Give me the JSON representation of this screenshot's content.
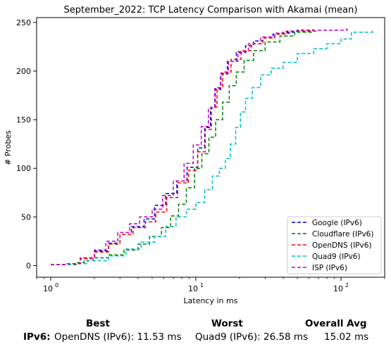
{
  "chart_data": {
    "type": "line",
    "title": "September_2022: TCP Latency Comparison with Akamai (mean)",
    "xlabel": "Latency in ms",
    "ylabel": "# Probes",
    "xscale": "log",
    "xlim": [
      0.8,
      200
    ],
    "ylim": [
      -12,
      255
    ],
    "xticks": [
      {
        "value": 1,
        "base": "10",
        "exp": "0"
      },
      {
        "value": 10,
        "base": "10",
        "exp": "1"
      },
      {
        "value": 100,
        "base": "10",
        "exp": "2"
      }
    ],
    "yticks": [
      0,
      50,
      100,
      150,
      200,
      250
    ],
    "legend_position": "lower-right",
    "series": [
      {
        "name": "Google (IPv6)",
        "color": "#0000cc",
        "points": [
          [
            1.0,
            1
          ],
          [
            1.3,
            2
          ],
          [
            1.6,
            7
          ],
          [
            2.0,
            15
          ],
          [
            2.5,
            23
          ],
          [
            3.0,
            32
          ],
          [
            3.6,
            40
          ],
          [
            4.4,
            48
          ],
          [
            5.2,
            62
          ],
          [
            6.2,
            74
          ],
          [
            7.4,
            87
          ],
          [
            8.7,
            101
          ],
          [
            10.3,
            121
          ],
          [
            11.5,
            142
          ],
          [
            12.6,
            162
          ],
          [
            13.6,
            181
          ],
          [
            14.8,
            197
          ],
          [
            16.5,
            210
          ],
          [
            19.0,
            219
          ],
          [
            22.0,
            226
          ],
          [
            25.0,
            231
          ],
          [
            29.0,
            235
          ],
          [
            34.0,
            238
          ],
          [
            40.0,
            240
          ],
          [
            50.0,
            242
          ],
          [
            65.0,
            243
          ]
        ]
      },
      {
        "name": "Cloudflare (IPv6)",
        "color": "#008000",
        "points": [
          [
            1.0,
            1
          ],
          [
            1.3,
            1
          ],
          [
            1.5,
            3
          ],
          [
            1.7,
            5
          ],
          [
            2.0,
            8
          ],
          [
            2.5,
            11
          ],
          [
            3.2,
            16
          ],
          [
            4.0,
            22
          ],
          [
            4.8,
            30
          ],
          [
            5.8,
            39
          ],
          [
            6.7,
            51
          ],
          [
            7.6,
            63
          ],
          [
            8.6,
            80
          ],
          [
            9.8,
            100
          ],
          [
            11.0,
            115
          ],
          [
            12.3,
            132
          ],
          [
            13.7,
            150
          ],
          [
            15.3,
            168
          ],
          [
            17.0,
            185
          ],
          [
            19.0,
            199
          ],
          [
            21.5,
            211
          ],
          [
            25.0,
            221
          ],
          [
            30.0,
            230
          ],
          [
            38.0,
            236
          ],
          [
            48.0,
            240
          ],
          [
            64.0,
            243
          ]
        ]
      },
      {
        "name": "OpenDNS (IPv6)",
        "color": "#ff0000",
        "points": [
          [
            1.0,
            1
          ],
          [
            1.3,
            2
          ],
          [
            1.6,
            7
          ],
          [
            2.0,
            14
          ],
          [
            2.5,
            22
          ],
          [
            3.0,
            32
          ],
          [
            3.7,
            39
          ],
          [
            4.5,
            45
          ],
          [
            5.3,
            55
          ],
          [
            6.3,
            70
          ],
          [
            7.5,
            85
          ],
          [
            8.9,
            98
          ],
          [
            10.3,
            117
          ],
          [
            11.6,
            140
          ],
          [
            12.8,
            163
          ],
          [
            14.0,
            183
          ],
          [
            15.3,
            199
          ],
          [
            17.5,
            212
          ],
          [
            20.5,
            221
          ],
          [
            24.0,
            228
          ],
          [
            29.0,
            234
          ],
          [
            35.0,
            238
          ],
          [
            42.0,
            241
          ],
          [
            52.0,
            242
          ],
          [
            65.0,
            243
          ]
        ]
      },
      {
        "name": "Quad9 (IPv6)",
        "color": "#00bfbf",
        "points": [
          [
            1.0,
            1
          ],
          [
            1.4,
            2
          ],
          [
            1.8,
            5
          ],
          [
            2.5,
            10
          ],
          [
            3.3,
            17
          ],
          [
            4.2,
            24
          ],
          [
            5.2,
            30
          ],
          [
            6.2,
            40
          ],
          [
            7.3,
            50
          ],
          [
            8.6,
            58
          ],
          [
            10.0,
            65
          ],
          [
            11.5,
            78
          ],
          [
            13.0,
            92
          ],
          [
            14.5,
            100
          ],
          [
            16.0,
            110
          ],
          [
            17.3,
            125
          ],
          [
            18.8,
            142
          ],
          [
            20.3,
            158
          ],
          [
            22.0,
            172
          ],
          [
            24.5,
            183
          ],
          [
            28.0,
            196
          ],
          [
            33.0,
            203
          ],
          [
            40.0,
            209
          ],
          [
            50.0,
            218
          ],
          [
            65.0,
            223
          ],
          [
            80.0,
            228
          ],
          [
            100.0,
            233
          ],
          [
            118.0,
            240
          ],
          [
            165.0,
            243
          ]
        ]
      },
      {
        "name": "ISP (IPv6)",
        "color": "#bf00bf",
        "points": [
          [
            1.0,
            1
          ],
          [
            1.3,
            2
          ],
          [
            1.6,
            8
          ],
          [
            2.0,
            16
          ],
          [
            2.4,
            25
          ],
          [
            2.9,
            34
          ],
          [
            3.5,
            43
          ],
          [
            4.1,
            50
          ],
          [
            5.0,
            58
          ],
          [
            5.9,
            72
          ],
          [
            7.0,
            87
          ],
          [
            8.3,
            105
          ],
          [
            9.6,
            124
          ],
          [
            10.9,
            143
          ],
          [
            12.2,
            162
          ],
          [
            13.5,
            182
          ],
          [
            14.9,
            198
          ],
          [
            16.8,
            210
          ],
          [
            19.5,
            220
          ],
          [
            23.0,
            228
          ],
          [
            28.0,
            235
          ],
          [
            35.0,
            239
          ],
          [
            45.0,
            241
          ],
          [
            70.0,
            242
          ],
          [
            110.0,
            244
          ]
        ]
      }
    ]
  },
  "stats": {
    "best_header": "Best",
    "worst_header": "Worst",
    "avg_header": "Overall Avg",
    "row_label": "IPv6:",
    "best_value": "OpenDNS (IPv6): 11.53 ms",
    "worst_value": "Quad9 (IPv6): 26.58 ms",
    "avg_value": "15.02 ms"
  }
}
